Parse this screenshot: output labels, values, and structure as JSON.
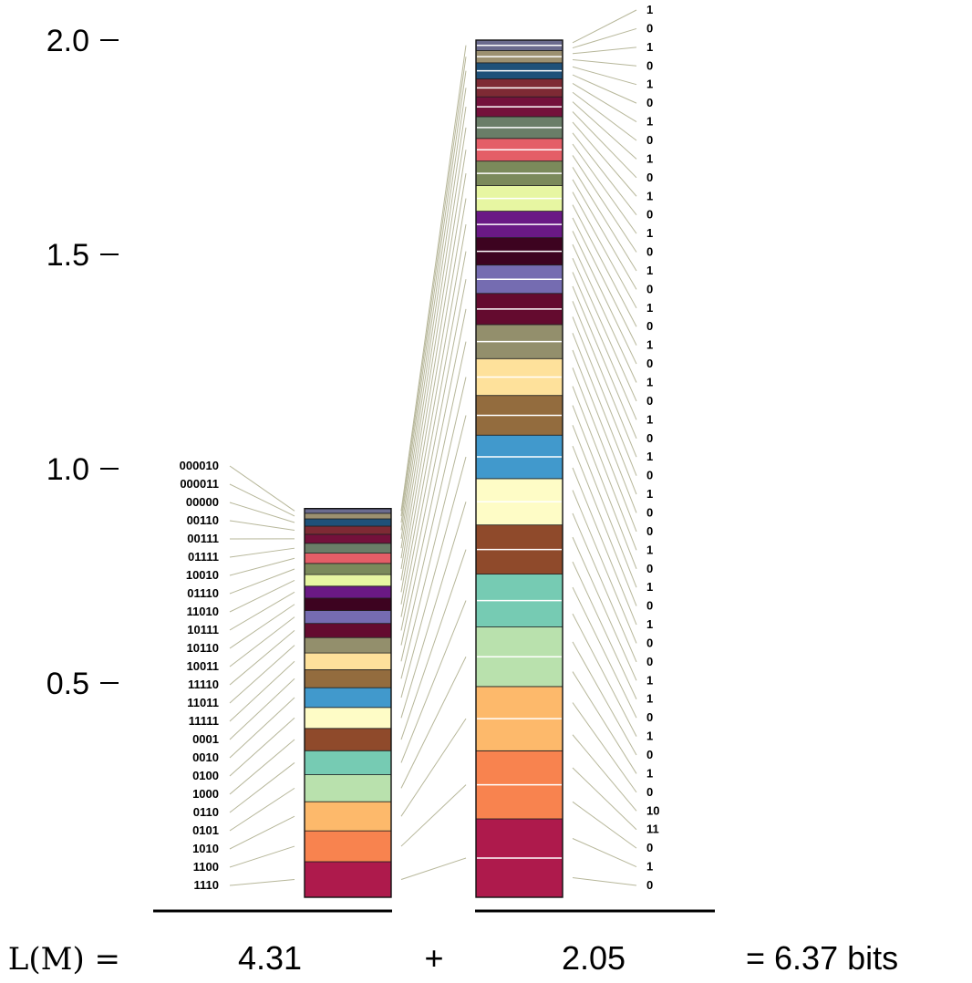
{
  "y_axis": {
    "ticks": [
      {
        "label": "2.0",
        "value": 2.0
      },
      {
        "label": "1.5",
        "value": 1.5
      },
      {
        "label": "1.0",
        "value": 1.0
      },
      {
        "label": "0.5",
        "value": 0.5
      }
    ]
  },
  "colors": [
    "#ae1a4c",
    "#f8834f",
    "#fdb96b",
    "#b9e1ad",
    "#76cbb3",
    "#8f4a2b",
    "#fefcc6",
    "#4199cc",
    "#936c3e",
    "#fee19b",
    "#938f6c",
    "#640b2f",
    "#756cb1",
    "#3d0320",
    "#6a1985",
    "#e7f6a2",
    "#7b8a5b",
    "#e45e67",
    "#6a7e68",
    "#74113b",
    "#7e2a34",
    "#1f5179",
    "#9c9070",
    "#6b6b8e"
  ],
  "left_bar": {
    "segments": [
      {
        "code": "1110",
        "height": 0.083
      },
      {
        "code": "1100",
        "height": 0.072
      },
      {
        "code": "1010",
        "height": 0.068
      },
      {
        "code": "0101",
        "height": 0.063
      },
      {
        "code": "0110",
        "height": 0.056
      },
      {
        "code": "1000",
        "height": 0.052
      },
      {
        "code": "0100",
        "height": 0.049
      },
      {
        "code": "0010",
        "height": 0.046
      },
      {
        "code": "0001",
        "height": 0.042
      },
      {
        "code": "11111",
        "height": 0.039
      },
      {
        "code": "11011",
        "height": 0.036
      },
      {
        "code": "11110",
        "height": 0.033
      },
      {
        "code": "10011",
        "height": 0.03
      },
      {
        "code": "10110",
        "height": 0.029
      },
      {
        "code": "10111",
        "height": 0.028
      },
      {
        "code": "11010",
        "height": 0.027
      },
      {
        "code": "01110",
        "height": 0.026
      },
      {
        "code": "10010",
        "height": 0.024
      },
      {
        "code": "01111",
        "height": 0.023
      },
      {
        "code": "00111",
        "height": 0.021
      },
      {
        "code": "00110",
        "height": 0.019
      },
      {
        "code": "00000",
        "height": 0.017
      },
      {
        "code": "000011",
        "height": 0.013
      },
      {
        "code": "000010",
        "height": 0.011
      }
    ]
  },
  "right_bar": {
    "segments": [
      {
        "bits": [
          "0",
          "1"
        ]
      },
      {
        "bits": [
          "0",
          "11"
        ]
      },
      {
        "bits": [
          "10",
          "0"
        ]
      },
      {
        "bits": [
          "1",
          "0"
        ]
      },
      {
        "bits": [
          "1",
          "0"
        ]
      },
      {
        "bits": [
          "1",
          "1"
        ]
      },
      {
        "bits": [
          "0",
          "0"
        ]
      },
      {
        "bits": [
          "1",
          "0"
        ]
      },
      {
        "bits": [
          "1",
          "0"
        ]
      },
      {
        "bits": [
          "1",
          "0"
        ]
      },
      {
        "bits": [
          "0",
          "1"
        ]
      },
      {
        "bits": [
          "0",
          "1"
        ]
      },
      {
        "bits": [
          "0",
          "1"
        ]
      },
      {
        "bits": [
          "0",
          "1"
        ]
      },
      {
        "bits": [
          "0",
          "1"
        ]
      },
      {
        "bits": [
          "0",
          "1"
        ]
      },
      {
        "bits": [
          "0",
          "1"
        ]
      },
      {
        "bits": [
          "0",
          "1"
        ]
      },
      {
        "bits": [
          "0",
          "1"
        ]
      },
      {
        "bits": [
          "0",
          "1"
        ]
      },
      {
        "bits": [
          "0",
          "1"
        ]
      },
      {
        "bits": [
          "0",
          "1"
        ]
      },
      {
        "bits": [
          "0",
          "1"
        ]
      },
      {
        "bits": [
          "0",
          "1"
        ]
      }
    ]
  },
  "equation": {
    "lhs": "L(M) =",
    "left_total": "4.31",
    "plus": "+",
    "right_total": "2.05",
    "result": "= 6.37 bits"
  }
}
